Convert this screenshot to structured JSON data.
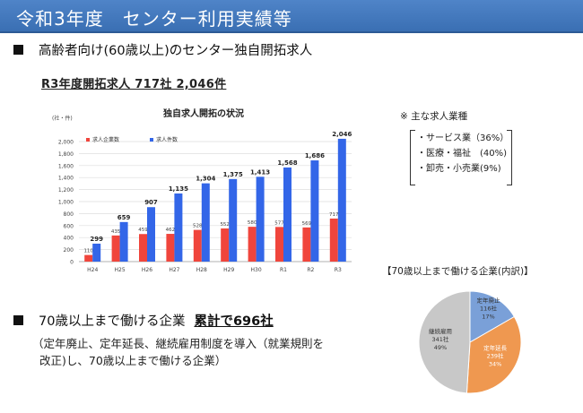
{
  "header": {
    "title": "令和3年度　センター利用実績等"
  },
  "section1": {
    "text": "高齢者向け(60歳以上)のセンター独自開拓求人"
  },
  "subheading": "R3年度開拓求人 717社 2,046件",
  "note": {
    "title": "※ 主な求人業種",
    "items": [
      "・サービス業（36%）",
      "・医療・福祉　(40%)",
      "・卸売・小売業(9%)"
    ]
  },
  "section2": {
    "text": "70歳以上まで働ける企業",
    "emphasis": "累計で696社",
    "line1": "（定年廃止、定年延長、継続雇用制度を導入（就業規則を",
    "line2": "改正)し、70歳以上まで働ける企業）"
  },
  "colors": {
    "header": "#3a6fb3",
    "companies": "#f0453c",
    "jobs": "#3366e8",
    "pie_abolish": "#7aa0d8",
    "pie_extend": "#ef9850",
    "pie_continue": "#c8c8c8"
  },
  "chart_data": [
    {
      "type": "bar",
      "title": "独自求人開拓の状況",
      "ylabel": "(社・件)",
      "ylim": [
        0,
        2000
      ],
      "yticks": [
        "0",
        "200",
        "400",
        "600",
        "800",
        "1,000",
        "1,200",
        "1,400",
        "1,600",
        "1,800",
        "2,000"
      ],
      "categories": [
        "H24",
        "H25",
        "H26",
        "H27",
        "H28",
        "H29",
        "H30",
        "R1",
        "R2",
        "R3"
      ],
      "legend_position": "top-left",
      "grid": true,
      "series": [
        {
          "name": "求人企業数",
          "values": [
            110,
            435,
            459,
            462,
            528,
            552,
            580,
            577,
            569,
            717
          ],
          "labels": [
            "110",
            "435",
            "459",
            "462",
            "528",
            "552",
            "580",
            "577",
            "569",
            "717"
          ]
        },
        {
          "name": "求人件数",
          "values": [
            299,
            659,
            907,
            1135,
            1304,
            1375,
            1413,
            1568,
            1686,
            2046
          ],
          "labels": [
            "299",
            "659",
            "907",
            "1,135",
            "1,304",
            "1,375",
            "1,413",
            "1,568",
            "1,686",
            "2,046"
          ]
        }
      ]
    },
    {
      "type": "pie",
      "title": "【70歳以上まで働ける企業(内訳)】",
      "slices": [
        {
          "name": "定年廃止",
          "count": "116社",
          "percent": "17%",
          "value": 116
        },
        {
          "name": "定年延長",
          "count": "239社",
          "percent": "34%",
          "value": 239
        },
        {
          "name": "継続雇用",
          "count": "341社",
          "percent": "49%",
          "value": 341
        }
      ]
    }
  ]
}
